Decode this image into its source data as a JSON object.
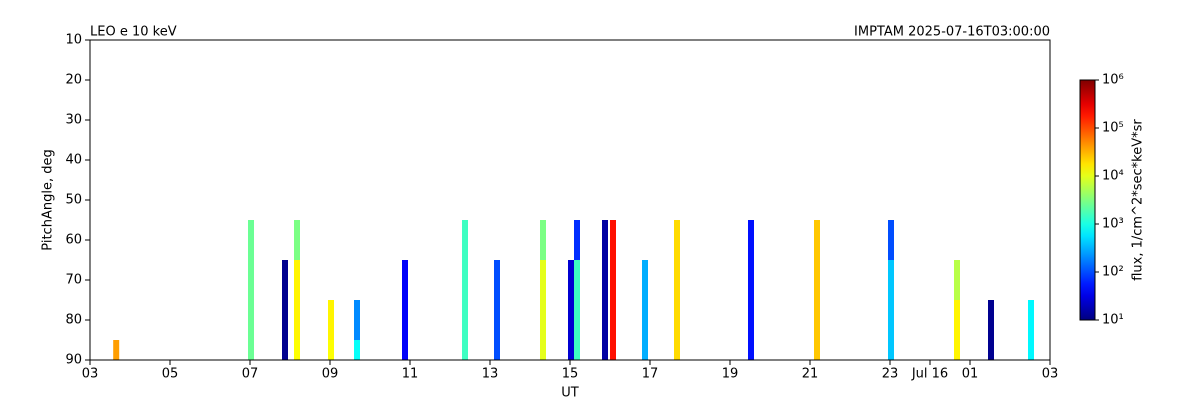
{
  "chart_data": {
    "type": "heatmap",
    "title_left": "LEO e 10 keV",
    "title_right": "IMPTAM 2025-07-16T03:00:00",
    "xlabel": "UT",
    "ylabel": "PitchAngle, deg",
    "xlim": [
      3,
      27
    ],
    "xticks": [
      {
        "value": 3,
        "label": "03"
      },
      {
        "value": 5,
        "label": "05"
      },
      {
        "value": 7,
        "label": "07"
      },
      {
        "value": 9,
        "label": "09"
      },
      11,
      13,
      15,
      17,
      19,
      21,
      23,
      {
        "value": 24,
        "label": "Jul 16"
      },
      {
        "value": 25,
        "label": "01"
      },
      {
        "value": 27,
        "label": "03"
      }
    ],
    "ylim": [
      90,
      10
    ],
    "yticks": [
      10,
      20,
      30,
      40,
      50,
      60,
      70,
      80,
      90
    ],
    "pitch_edges": [
      55,
      65,
      75,
      85,
      90
    ],
    "x": [
      3.58,
      6.95,
      7.8,
      8.1,
      8.95,
      9.6,
      10.8,
      12.3,
      13.1,
      14.25,
      14.95,
      15.1,
      15.8,
      16.0,
      16.8,
      17.6,
      19.45,
      21.1,
      22.95,
      24.6,
      25.45,
      26.45
    ],
    "values": [
      [
        null,
        null,
        null,
        40000
      ],
      [
        2500,
        2500,
        2500,
        2500
      ],
      [
        null,
        12,
        12,
        12
      ],
      [
        3000,
        15000,
        15000,
        13000
      ],
      [
        null,
        null,
        15000,
        13000
      ],
      [
        null,
        null,
        200,
        800
      ],
      [
        null,
        40,
        40,
        40
      ],
      [
        1500,
        1500,
        1500,
        1500
      ],
      [
        null,
        100,
        100,
        100
      ],
      [
        3000,
        10000,
        10000,
        10000
      ],
      [
        null,
        25,
        25,
        25
      ],
      [
        70,
        1500,
        1500,
        1500
      ],
      [
        15,
        15,
        15,
        15
      ],
      [
        200000,
        200000,
        200000,
        200000
      ],
      [
        null,
        300,
        300,
        300
      ],
      [
        20000,
        20000,
        20000,
        20000
      ],
      [
        50,
        50,
        50,
        50
      ],
      [
        25000,
        25000,
        25000,
        25000
      ],
      [
        100,
        400,
        400,
        400
      ],
      [
        null,
        6000,
        15000,
        15000
      ],
      [
        null,
        null,
        12,
        12
      ],
      [
        null,
        null,
        700,
        700
      ]
    ],
    "colorbar": {
      "label": "flux, 1/cm^2*sec*keV*sr",
      "lim": [
        10,
        1000000
      ],
      "log": true,
      "colormap": "jet",
      "ticks": [
        {
          "value": 10,
          "label": "10¹"
        },
        {
          "value": 100,
          "label": "10²"
        },
        {
          "value": 1000,
          "label": "10³"
        },
        {
          "value": 10000,
          "label": "10⁴"
        },
        {
          "value": 100000,
          "label": "10⁵"
        },
        {
          "value": 1000000,
          "label": "10⁶"
        }
      ]
    }
  }
}
